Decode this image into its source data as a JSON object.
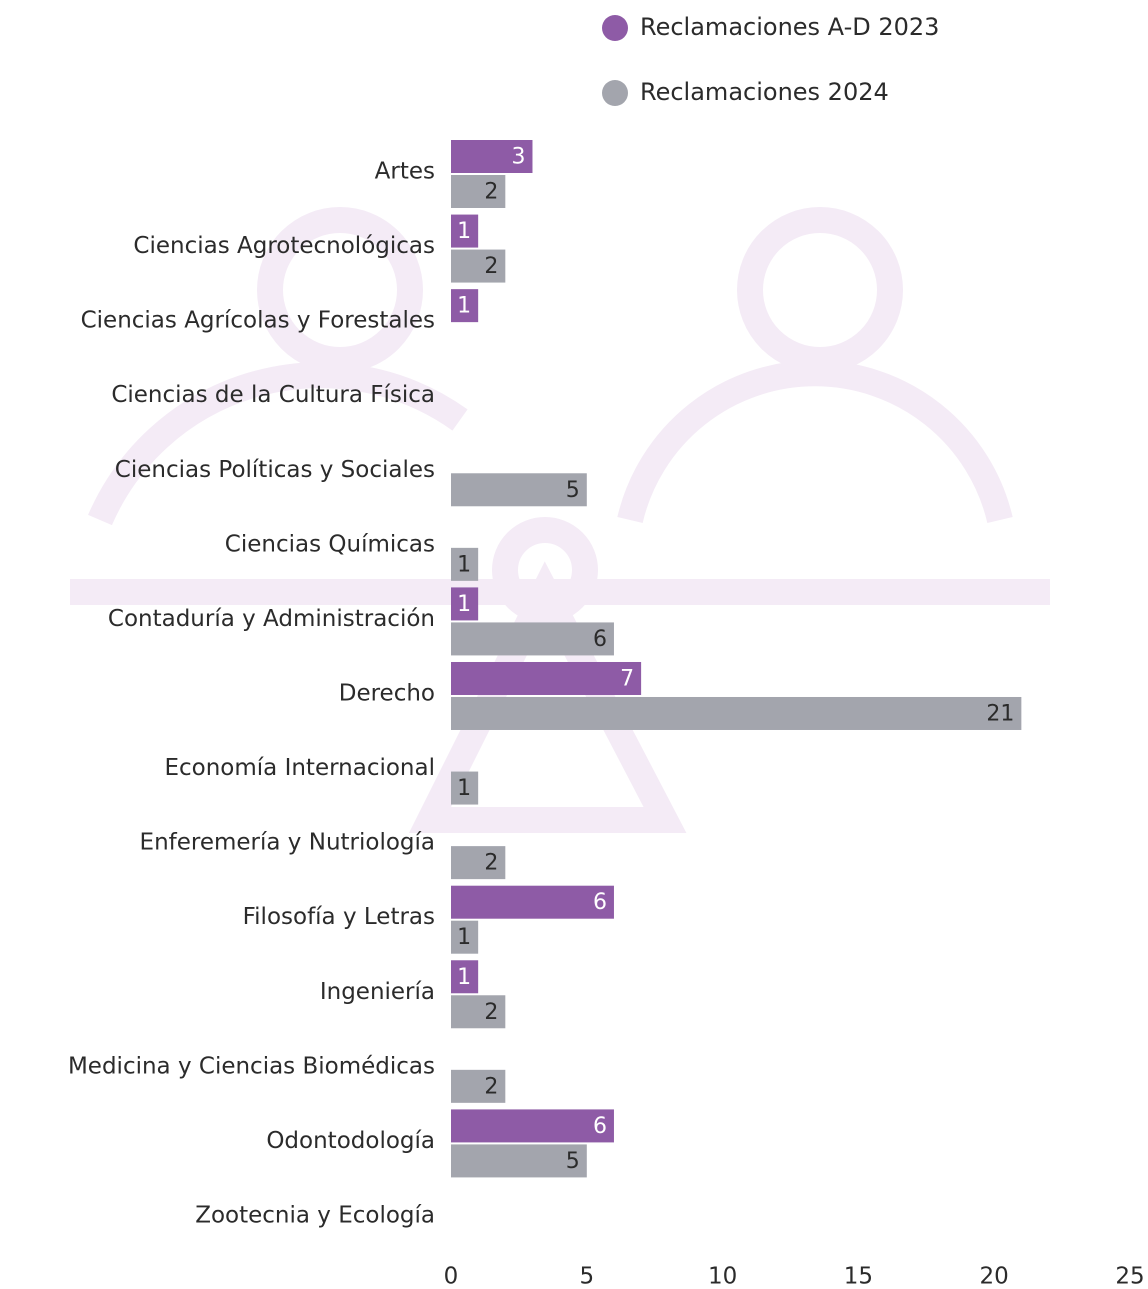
{
  "chart_data": {
    "type": "hbar",
    "categories": [
      "Artes",
      "Ciencias Agrotecnológicas",
      "Ciencias Agrícolas y Forestales",
      "Ciencias de la Cultura Física",
      "Ciencias Políticas y Sociales",
      "Ciencias Químicas",
      "Contaduría y Administración",
      "Derecho",
      "Economía Internacional",
      "Enferemería y Nutriología",
      "Filosofía y Letras",
      "Ingeniería",
      "Medicina y Ciencias Biomédicas",
      "Odontodología",
      "Zootecnia y Ecología"
    ],
    "series": [
      {
        "name": "Reclamaciones A-D 2023",
        "color": "#8e5ba6",
        "values": [
          3,
          1,
          1,
          null,
          null,
          null,
          1,
          7,
          null,
          null,
          6,
          1,
          null,
          6,
          null
        ]
      },
      {
        "name": "Reclamaciones 2024",
        "color": "#a3a5ad",
        "values": [
          2,
          2,
          null,
          null,
          5,
          1,
          6,
          21,
          1,
          2,
          1,
          2,
          2,
          5,
          null
        ]
      }
    ],
    "xlim": [
      0,
      25
    ],
    "xticks": [
      0,
      5,
      10,
      15,
      20,
      25
    ]
  }
}
